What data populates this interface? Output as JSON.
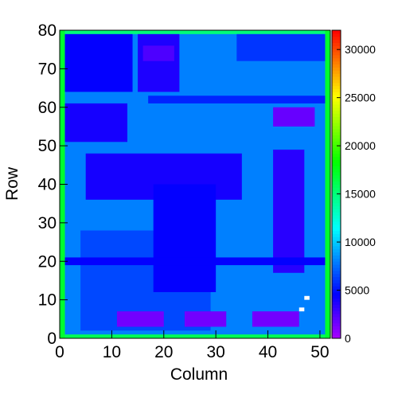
{
  "chart_data": {
    "type": "heatmap",
    "xlabel": "Column",
    "ylabel": "Row",
    "xlim": [
      0,
      52
    ],
    "ylim": [
      0,
      80
    ],
    "zlim": [
      0,
      32000
    ],
    "xticks": [
      0,
      10,
      20,
      30,
      40,
      50
    ],
    "yticks": [
      0,
      10,
      20,
      30,
      40,
      50,
      60,
      70,
      80
    ],
    "zticks": [
      0,
      5000,
      10000,
      15000,
      20000,
      25000,
      30000
    ],
    "regions": [
      {
        "x": [
          0,
          52
        ],
        "y": [
          0,
          80
        ],
        "value": 8000
      },
      {
        "x": [
          0,
          1
        ],
        "y": [
          0,
          80
        ],
        "value": 17000
      },
      {
        "x": [
          51,
          52
        ],
        "y": [
          0,
          80
        ],
        "value": 17000
      },
      {
        "x": [
          1,
          51
        ],
        "y": [
          79,
          80
        ],
        "value": 15000
      },
      {
        "x": [
          1,
          51
        ],
        "y": [
          0,
          1
        ],
        "value": 16000
      },
      {
        "x": [
          1,
          14
        ],
        "y": [
          64,
          79
        ],
        "value": 4500
      },
      {
        "x": [
          15,
          23
        ],
        "y": [
          64,
          79
        ],
        "value": 3800
      },
      {
        "x": [
          16,
          22
        ],
        "y": [
          72,
          76
        ],
        "value": 2500
      },
      {
        "x": [
          34,
          51
        ],
        "y": [
          72,
          79
        ],
        "value": 6000
      },
      {
        "x": [
          1,
          13
        ],
        "y": [
          51,
          61
        ],
        "value": 4000
      },
      {
        "x": [
          17,
          51
        ],
        "y": [
          61,
          63
        ],
        "value": 5500
      },
      {
        "x": [
          41,
          49
        ],
        "y": [
          55,
          60
        ],
        "value": 1800
      },
      {
        "x": [
          4,
          29
        ],
        "y": [
          2,
          28
        ],
        "value": 6500
      },
      {
        "x": [
          5,
          35
        ],
        "y": [
          36,
          48
        ],
        "value": 4000
      },
      {
        "x": [
          18,
          30
        ],
        "y": [
          12,
          40
        ],
        "value": 4500
      },
      {
        "x": [
          41,
          47
        ],
        "y": [
          17,
          49
        ],
        "value": 3500
      },
      {
        "x": [
          1,
          51
        ],
        "y": [
          19,
          21
        ],
        "value": 4500
      },
      {
        "x": [
          11,
          20
        ],
        "y": [
          3,
          7
        ],
        "value": 1500
      },
      {
        "x": [
          24,
          32
        ],
        "y": [
          3,
          7
        ],
        "value": 1500
      },
      {
        "x": [
          37,
          46
        ],
        "y": [
          3,
          7
        ],
        "value": 1500
      },
      {
        "x": [
          47,
          48
        ],
        "y": [
          10,
          11
        ],
        "value": 0
      },
      {
        "x": [
          46,
          47
        ],
        "y": [
          7,
          8
        ],
        "value": 0
      }
    ]
  }
}
